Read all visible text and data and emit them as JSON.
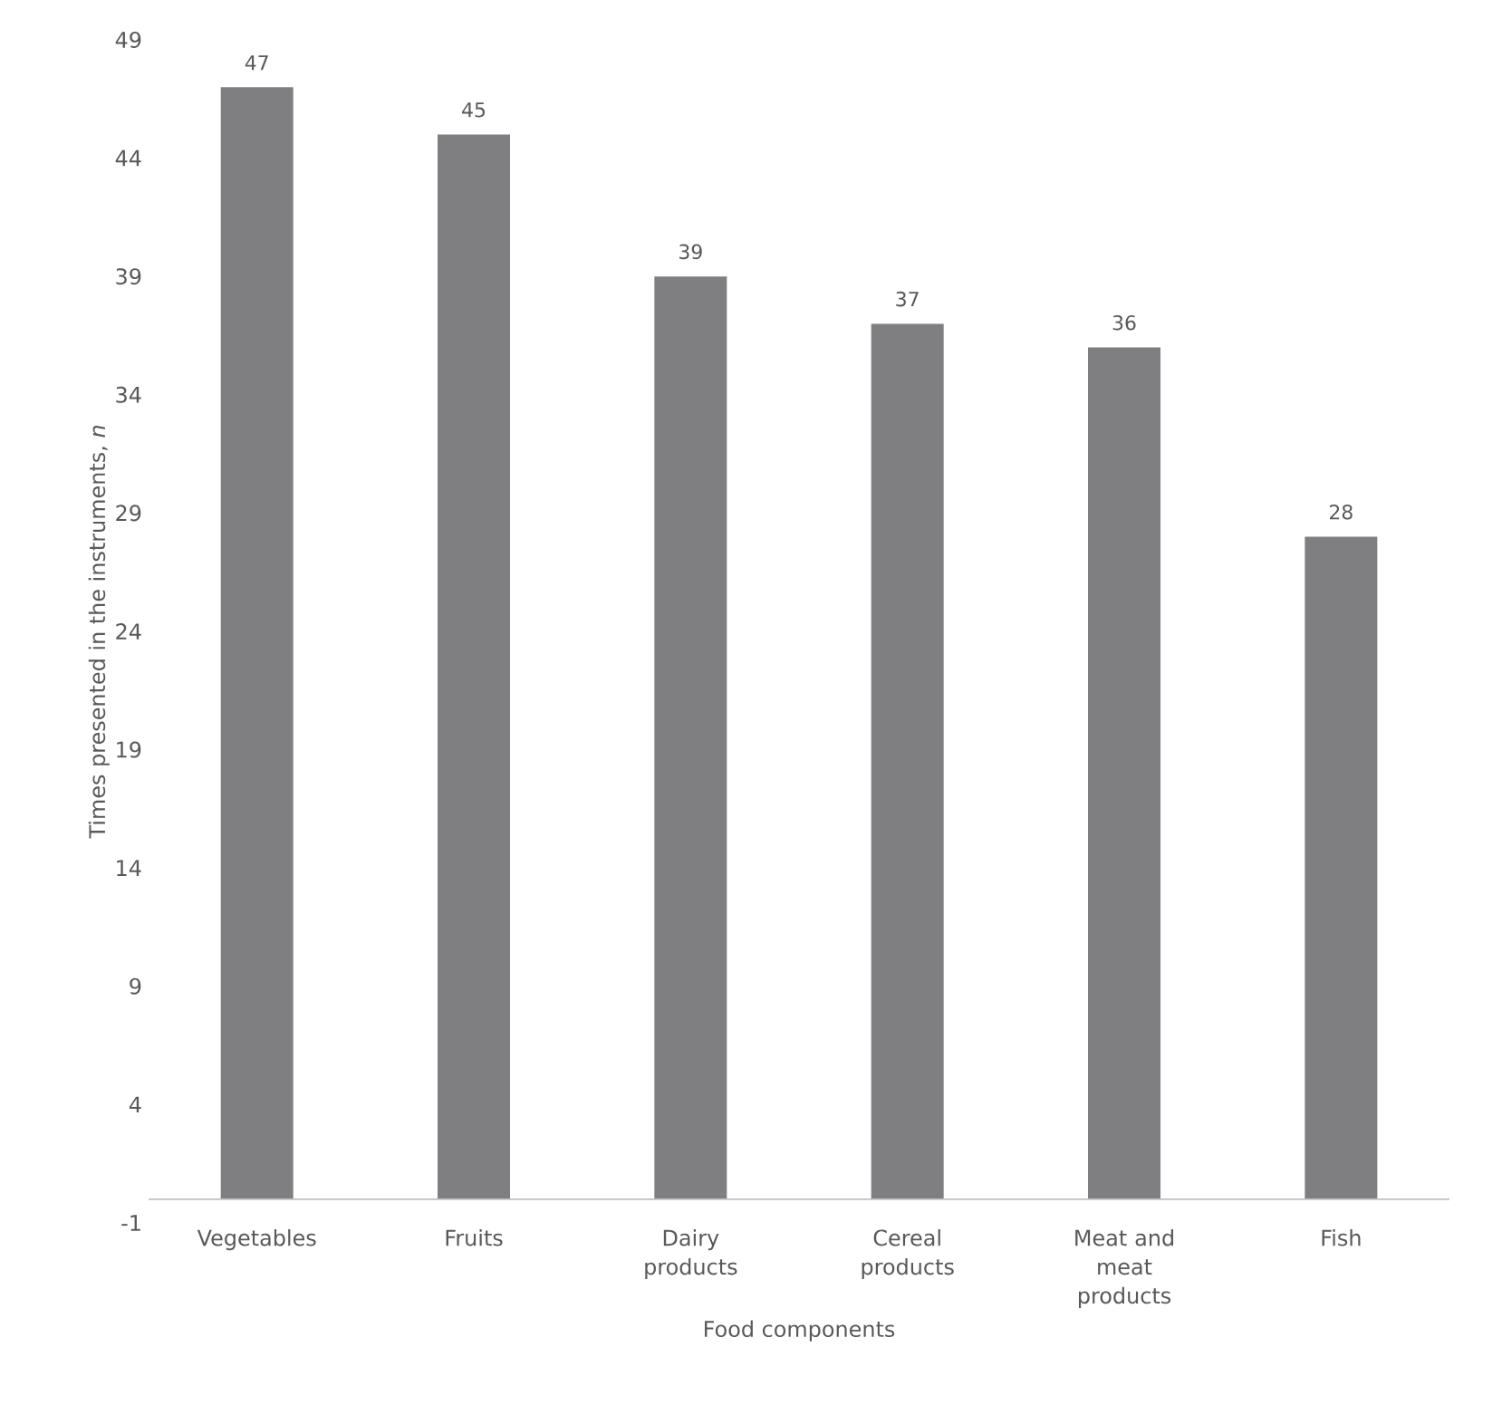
{
  "chart_data": {
    "type": "bar",
    "xlabel": "Food components",
    "ylabel": "Times presented in the instruments, *n*",
    "categories": [
      "Vegetables",
      "Fruits",
      "Dairy products",
      "Cereal products",
      "Meat and meat products",
      "Fish"
    ],
    "values": [
      47,
      45,
      39,
      37,
      36,
      28
    ],
    "color": "#7f7f82",
    "ylim": [
      -1,
      49
    ],
    "yticks": [
      -1,
      4,
      9,
      14,
      19,
      24,
      29,
      34,
      39,
      44,
      49
    ],
    "data_labels": true
  }
}
